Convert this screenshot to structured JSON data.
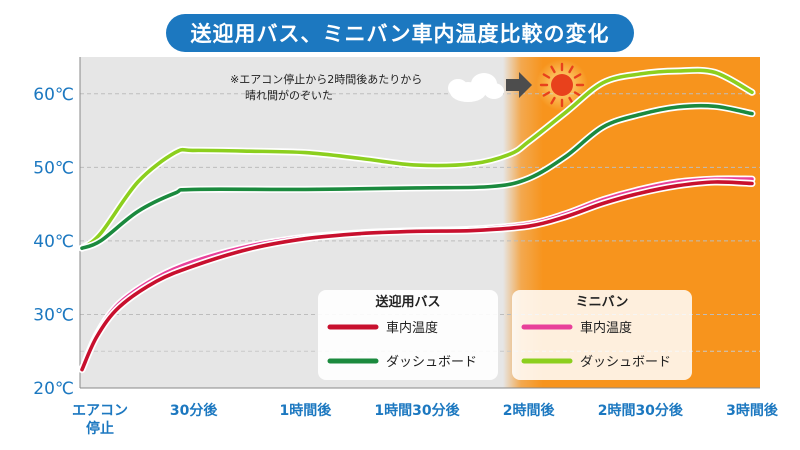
{
  "title": "送迎用バス、ミニバン車内温度比較の変化",
  "annotation": {
    "line1": "※エアコン停止から2時間後あたりから",
    "line2": "晴れ間がのぞいた",
    "icons": [
      "cloud-icon",
      "arrow-right-icon",
      "sun-icon"
    ]
  },
  "legend": {
    "bus": {
      "title": "送迎用バス",
      "items": [
        "車内温度",
        "ダッシュボード"
      ]
    },
    "minivan": {
      "title": "ミニバン",
      "items": [
        "車内温度",
        "ダッシュボード"
      ]
    }
  },
  "colors": {
    "bus_interior": "#c8102e",
    "bus_dashboard": "#1b8a3e",
    "minivan_interior": "#e8409a",
    "minivan_dashboard": "#8ccf1e",
    "sunny_bg": "#f7941d",
    "plot_bg": "#e6e6e6",
    "accent": "#1c78c0"
  },
  "chart_data": {
    "type": "line",
    "title": "送迎用バス、ミニバン車内温度比較の変化",
    "x_labels": [
      "エアコン停止",
      "30分後",
      "1時間後",
      "1時間30分後",
      "2時間後",
      "2時間30分後",
      "3時間後"
    ],
    "x": [
      0,
      30,
      60,
      90,
      120,
      150,
      180
    ],
    "ylim": [
      20,
      65
    ],
    "y_ticks": [
      "20℃",
      "30℃",
      "40℃",
      "50℃",
      "60℃"
    ],
    "y_tick_values": [
      20,
      30,
      40,
      50,
      60
    ],
    "sunny_from_x": 120,
    "series": [
      {
        "group": "送迎用バス",
        "name": "車内温度",
        "color": "#c8102e",
        "points": [
          [
            0,
            22.5
          ],
          [
            4,
            27
          ],
          [
            10,
            31
          ],
          [
            20,
            34.5
          ],
          [
            30,
            36.6
          ],
          [
            45,
            38.9
          ],
          [
            60,
            40.3
          ],
          [
            75,
            41
          ],
          [
            90,
            41.3
          ],
          [
            105,
            41.4
          ],
          [
            120,
            42
          ],
          [
            130,
            43.3
          ],
          [
            140,
            45.1
          ],
          [
            150,
            46.5
          ],
          [
            160,
            47.5
          ],
          [
            170,
            48
          ],
          [
            180,
            47.8
          ]
        ]
      },
      {
        "group": "送迎用バス",
        "name": "ダッシュボード",
        "color": "#1b8a3e",
        "points": [
          [
            0,
            39
          ],
          [
            5,
            40
          ],
          [
            15,
            44
          ],
          [
            25,
            46.5
          ],
          [
            30,
            47
          ],
          [
            60,
            47
          ],
          [
            90,
            47.2
          ],
          [
            110,
            47.4
          ],
          [
            120,
            48.5
          ],
          [
            130,
            51.5
          ],
          [
            140,
            55.5
          ],
          [
            150,
            57.2
          ],
          [
            160,
            58.2
          ],
          [
            170,
            58.3
          ],
          [
            180,
            57.3
          ]
        ]
      },
      {
        "group": "ミニバン",
        "name": "車内温度",
        "color": "#e8409a",
        "points": [
          [
            0,
            22.5
          ],
          [
            4,
            27.3
          ],
          [
            10,
            31.5
          ],
          [
            20,
            35
          ],
          [
            30,
            37.2
          ],
          [
            45,
            39.3
          ],
          [
            60,
            40.5
          ],
          [
            75,
            41.1
          ],
          [
            90,
            41.4
          ],
          [
            105,
            41.6
          ],
          [
            120,
            42.3
          ],
          [
            130,
            43.7
          ],
          [
            140,
            45.6
          ],
          [
            150,
            47
          ],
          [
            160,
            48
          ],
          [
            170,
            48.4
          ],
          [
            180,
            48.4
          ]
        ]
      },
      {
        "group": "ミニバン",
        "name": "ダッシュボード",
        "color": "#8ccf1e",
        "points": [
          [
            0,
            39
          ],
          [
            5,
            41
          ],
          [
            15,
            48
          ],
          [
            25,
            52
          ],
          [
            30,
            52.3
          ],
          [
            45,
            52.2
          ],
          [
            60,
            52
          ],
          [
            75,
            51.2
          ],
          [
            90,
            50.3
          ],
          [
            105,
            50.5
          ],
          [
            115,
            51.8
          ],
          [
            120,
            53.5
          ],
          [
            130,
            57.5
          ],
          [
            140,
            61.5
          ],
          [
            150,
            62.7
          ],
          [
            160,
            63.1
          ],
          [
            170,
            62.9
          ],
          [
            180,
            60.2
          ]
        ]
      }
    ],
    "grid": true,
    "legend_position": "bottom-right"
  }
}
